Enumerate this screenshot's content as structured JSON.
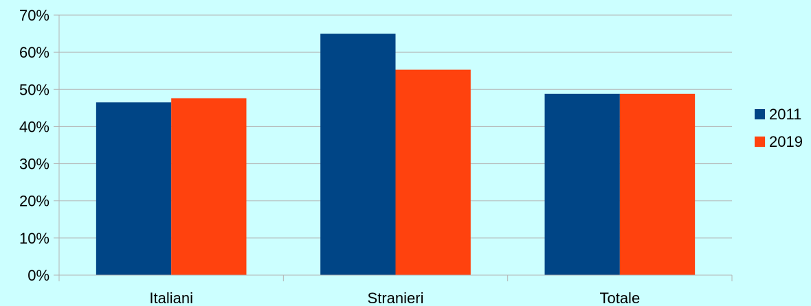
{
  "chart_data": {
    "type": "bar",
    "categories": [
      "Italiani",
      "Stranieri",
      "Totale"
    ],
    "series": [
      {
        "name": "2011",
        "values": [
          46.5,
          65.0,
          48.8
        ],
        "color": "#004586"
      },
      {
        "name": "2019",
        "values": [
          47.6,
          55.3,
          48.8
        ],
        "color": "#ff420e"
      }
    ],
    "ylim": [
      0,
      70
    ],
    "yticks": [
      0,
      10,
      20,
      30,
      40,
      50,
      60,
      70
    ],
    "ytick_labels": [
      "0%",
      "10%",
      "20%",
      "30%",
      "40%",
      "50%",
      "60%",
      "70%"
    ],
    "grid": true,
    "legend_position": "right",
    "background_color": "#ccffff",
    "grid_color": "#b3b3b3"
  }
}
